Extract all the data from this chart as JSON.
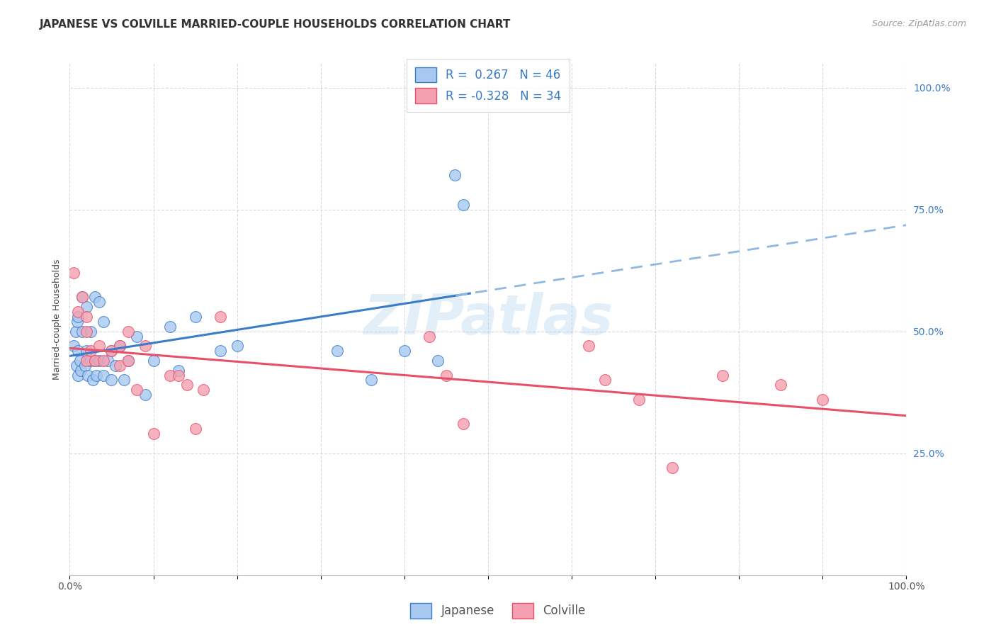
{
  "title": "JAPANESE VS COLVILLE MARRIED-COUPLE HOUSEHOLDS CORRELATION CHART",
  "source": "Source: ZipAtlas.com",
  "ylabel": "Married-couple Households",
  "watermark": "ZIPatlas",
  "japanese_R": 0.267,
  "japanese_N": 46,
  "colville_R": -0.328,
  "colville_N": 34,
  "japanese_color": "#a8c8f0",
  "colville_color": "#f4a0b0",
  "trend_japanese_color": "#3a7cc7",
  "trend_colville_color": "#e8506a",
  "trend_japanese_dash_color": "#90b8e0",
  "japanese_points_x": [
    0.005,
    0.007,
    0.008,
    0.009,
    0.01,
    0.01,
    0.01,
    0.012,
    0.013,
    0.015,
    0.015,
    0.018,
    0.02,
    0.02,
    0.022,
    0.025,
    0.025,
    0.028,
    0.03,
    0.03,
    0.032,
    0.035,
    0.035,
    0.04,
    0.04,
    0.045,
    0.05,
    0.05,
    0.055,
    0.06,
    0.065,
    0.07,
    0.08,
    0.09,
    0.1,
    0.12,
    0.13,
    0.15,
    0.18,
    0.2,
    0.32,
    0.36,
    0.4,
    0.44,
    0.46,
    0.47
  ],
  "japanese_points_y": [
    0.47,
    0.5,
    0.43,
    0.52,
    0.41,
    0.46,
    0.53,
    0.44,
    0.42,
    0.5,
    0.57,
    0.43,
    0.46,
    0.55,
    0.41,
    0.44,
    0.5,
    0.4,
    0.44,
    0.57,
    0.41,
    0.44,
    0.56,
    0.41,
    0.52,
    0.44,
    0.4,
    0.46,
    0.43,
    0.47,
    0.4,
    0.44,
    0.49,
    0.37,
    0.44,
    0.51,
    0.42,
    0.53,
    0.46,
    0.47,
    0.46,
    0.4,
    0.46,
    0.44,
    0.82,
    0.76
  ],
  "colville_points_x": [
    0.005,
    0.01,
    0.015,
    0.02,
    0.02,
    0.02,
    0.025,
    0.03,
    0.035,
    0.04,
    0.05,
    0.06,
    0.06,
    0.07,
    0.07,
    0.08,
    0.09,
    0.1,
    0.12,
    0.13,
    0.14,
    0.15,
    0.16,
    0.18,
    0.43,
    0.45,
    0.47,
    0.62,
    0.64,
    0.68,
    0.72,
    0.78,
    0.85,
    0.9
  ],
  "colville_points_y": [
    0.62,
    0.54,
    0.57,
    0.44,
    0.5,
    0.53,
    0.46,
    0.44,
    0.47,
    0.44,
    0.46,
    0.43,
    0.47,
    0.5,
    0.44,
    0.38,
    0.47,
    0.29,
    0.41,
    0.41,
    0.39,
    0.3,
    0.38,
    0.53,
    0.49,
    0.41,
    0.31,
    0.47,
    0.4,
    0.36,
    0.22,
    0.41,
    0.39,
    0.36
  ],
  "xmin": 0.0,
  "xmax": 1.0,
  "ymin": 0.0,
  "ymax": 1.05,
  "yticks": [
    0.25,
    0.5,
    0.75,
    1.0
  ],
  "ytick_labels": [
    "25.0%",
    "50.0%",
    "75.0%",
    "100.0%"
  ],
  "xticks": [
    0.0,
    0.1,
    0.2,
    0.3,
    0.4,
    0.5,
    0.6,
    0.7,
    0.8,
    0.9,
    1.0
  ],
  "xtick_labels_show": [
    "0.0%",
    "",
    "",
    "",
    "",
    "",
    "",
    "",
    "",
    "",
    "100.0%"
  ],
  "grid_color": "#d8d8e8",
  "background_color": "#ffffff",
  "title_fontsize": 11,
  "axis_label_fontsize": 9,
  "tick_fontsize": 10,
  "legend_fontsize": 12
}
